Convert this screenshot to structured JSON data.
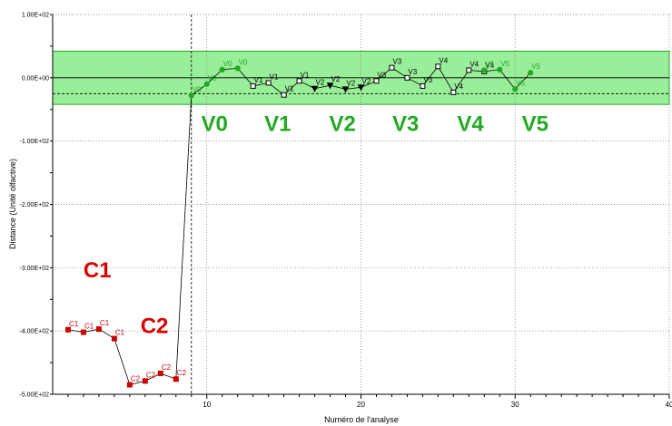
{
  "chart_data": {
    "type": "scatter",
    "xlabel": "Numéro de l'analyse",
    "ylabel": "Distance (Unité olfactive)",
    "xlim": [
      0,
      40
    ],
    "ylim": [
      -500,
      100
    ],
    "x_ticks": [
      {
        "value": 10,
        "label": "10"
      },
      {
        "value": 20,
        "label": "20"
      },
      {
        "value": 30,
        "label": "30"
      },
      {
        "value": 40,
        "label": "40"
      }
    ],
    "y_ticks": [
      {
        "value": 100,
        "label": "1.00E+02"
      },
      {
        "value": 0,
        "label": "0.00E+00"
      },
      {
        "value": -100,
        "label": "-1.00E+02"
      },
      {
        "value": -200,
        "label": "-2.00E+02"
      },
      {
        "value": -300,
        "label": "-3.00E+02"
      },
      {
        "value": -400,
        "label": "-4.00E+02"
      },
      {
        "value": -500,
        "label": "-5.00E+02"
      }
    ],
    "grid": "dotted",
    "acceptance_band": {
      "ymin": -42,
      "ymax": 42,
      "color": "#99ee99",
      "border": "#22aa22"
    },
    "reference_lines": {
      "dashed_y": -25,
      "dashed_x": 9
    },
    "colors": {
      "C": "#cc0000",
      "V_green": "#22aa22",
      "V_black": "#000000",
      "big_C": "#dd0000",
      "big_V": "#22aa22"
    },
    "series": [
      {
        "name": "C1",
        "color": "#cc0000",
        "marker": "square",
        "x": [
          1,
          2,
          3,
          4
        ],
        "y": [
          -398,
          -402,
          -397,
          -412
        ]
      },
      {
        "name": "C2",
        "color": "#cc0000",
        "marker": "square",
        "x": [
          5,
          6,
          7,
          8
        ],
        "y": [
          -485,
          -479,
          -467,
          -476
        ]
      },
      {
        "name": "V0",
        "color": "#22aa22",
        "marker": "circle",
        "x": [
          9,
          10,
          11,
          12
        ],
        "y": [
          -28,
          -10,
          13,
          15
        ]
      },
      {
        "name": "V1",
        "color": "#000000",
        "marker": "square",
        "x": [
          13,
          14,
          15,
          16
        ],
        "y": [
          -13,
          -8,
          -27,
          -5
        ]
      },
      {
        "name": "V2",
        "color": "#000000",
        "marker": "triangle",
        "x": [
          17,
          18,
          19,
          20
        ],
        "y": [
          -17,
          -12,
          -18,
          -15
        ]
      },
      {
        "name": "V3",
        "color": "#000000",
        "marker": "square",
        "x": [
          21,
          22,
          23,
          24
        ],
        "y": [
          -5,
          16,
          0,
          -13
        ]
      },
      {
        "name": "V4",
        "color": "#000000",
        "marker": "square",
        "x": [
          25,
          26,
          27,
          28
        ],
        "y": [
          18,
          -23,
          12,
          10
        ]
      },
      {
        "name": "V5",
        "color": "#22aa22",
        "marker": "circle",
        "x": [
          28,
          29,
          30,
          31
        ],
        "y": [
          12,
          13,
          -18,
          8
        ]
      }
    ],
    "big_labels": [
      {
        "text": "C1",
        "group": "C",
        "x": 2.9,
        "y": -315
      },
      {
        "text": "C2",
        "group": "C",
        "x": 6.6,
        "y": -403
      },
      {
        "text": "V0",
        "group": "V",
        "x": 10.5,
        "y": -84
      },
      {
        "text": "V1",
        "group": "V",
        "x": 14.6,
        "y": -84
      },
      {
        "text": "V2",
        "group": "V",
        "x": 18.8,
        "y": -84
      },
      {
        "text": "V3",
        "group": "V",
        "x": 22.9,
        "y": -84
      },
      {
        "text": "V4",
        "group": "V",
        "x": 27.1,
        "y": -84
      },
      {
        "text": "V5",
        "group": "V",
        "x": 31.3,
        "y": -84
      }
    ]
  }
}
